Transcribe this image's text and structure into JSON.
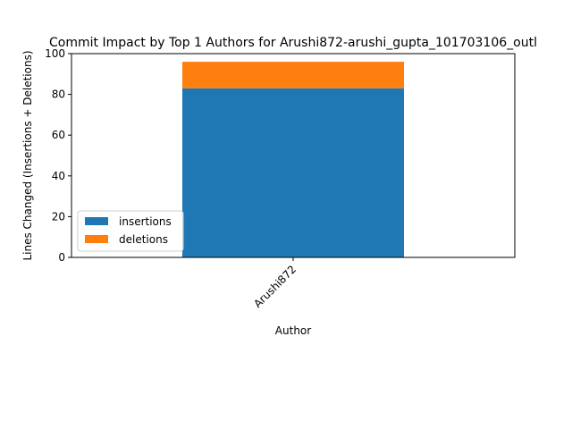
{
  "chart_data": {
    "type": "bar",
    "stacked": true,
    "title": "Commit Impact by Top 1 Authors for Arushi872-arushi_gupta_101703106_outl",
    "xlabel": "Author",
    "ylabel": "Lines Changed (Insertions + Deletions)",
    "categories": [
      "Arushi872"
    ],
    "series": [
      {
        "name": "insertions",
        "values": [
          83
        ],
        "color": "#1f77b4"
      },
      {
        "name": "deletions",
        "values": [
          13
        ],
        "color": "#ff7f0e"
      }
    ],
    "ylim": [
      0,
      100
    ],
    "yticks": [
      "0",
      "20",
      "40",
      "60",
      "80",
      "100"
    ],
    "grid": false,
    "legend": "lower-left"
  }
}
